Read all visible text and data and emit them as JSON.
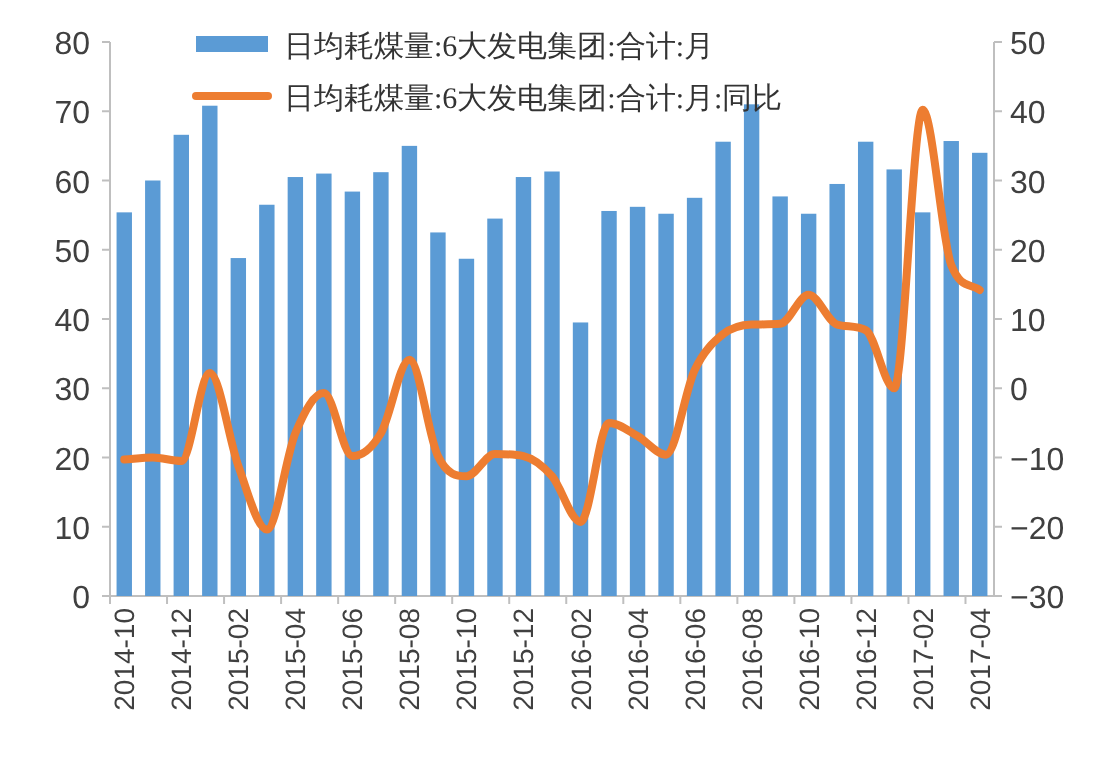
{
  "chart_data": {
    "type": "bar",
    "categories": [
      "2014-10",
      null,
      "2014-12",
      null,
      "2015-02",
      null,
      "2015-04",
      null,
      "2015-06",
      null,
      "2015-08",
      null,
      "2015-10",
      null,
      "2015-12",
      null,
      "2016-02",
      null,
      "2016-04",
      null,
      "2016-06",
      null,
      "2016-08",
      null,
      "2016-10",
      null,
      "2016-12",
      null,
      "2017-02",
      null,
      "2017-04"
    ],
    "series": [
      {
        "name": "日均耗煤量:6大发电集团:合计:月",
        "color": "#5b9bd5",
        "values": [
          55.4,
          60.0,
          66.6,
          70.8,
          48.8,
          56.5,
          60.5,
          61.0,
          58.4,
          61.2,
          65.0,
          52.5,
          48.7,
          54.5,
          60.5,
          61.3,
          39.5,
          55.6,
          56.2,
          55.2,
          57.5,
          65.6,
          71.0,
          57.7,
          55.2,
          59.5,
          65.6,
          61.6,
          55.4,
          65.7,
          64.0
        ]
      },
      {
        "name": "日均耗煤量:6大发电集团:合计:月:同比",
        "type": "line",
        "axis": "y2",
        "color": "#ed7d31",
        "values": [
          -10.3,
          -10.0,
          -10.5,
          2.2,
          -11.2,
          -20.4,
          -6.5,
          -0.7,
          -9.8,
          -6.5,
          4.1,
          -9.8,
          -12.7,
          -9.5,
          -9.8,
          -12.7,
          -19.3,
          -5.0,
          -6.9,
          -9.6,
          2.6,
          7.8,
          9.2,
          9.3,
          13.5,
          9.2,
          8.4,
          0.0,
          40.2,
          17.8,
          14.2
        ]
      }
    ],
    "ylim": [
      0,
      80
    ],
    "yticks": [
      0,
      10,
      20,
      30,
      40,
      50,
      60,
      70,
      80
    ],
    "y2lim": [
      -30,
      50
    ],
    "y2ticks": [
      -30,
      -20,
      -10,
      0,
      10,
      20,
      30,
      40,
      50
    ],
    "legend": "top"
  }
}
